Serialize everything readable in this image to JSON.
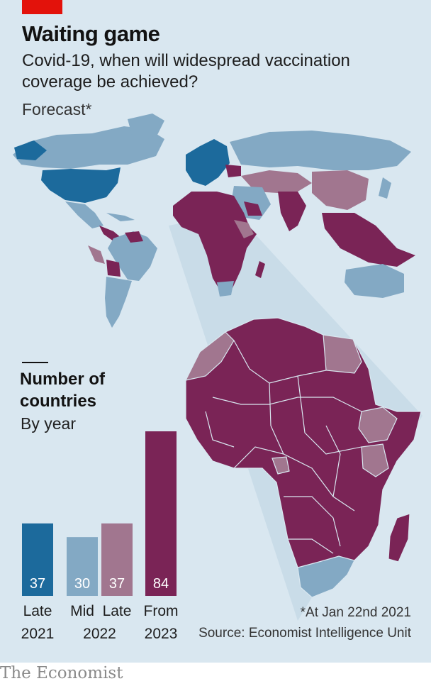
{
  "header": {
    "title": "Waiting game",
    "subtitle": "Covid-19, when will widespread vaccination coverage be achieved?",
    "note": "Forecast*"
  },
  "colors": {
    "late_2021": "#1c6a9c",
    "mid_2022": "#83a9c4",
    "late_2022": "#a1768f",
    "from_2023": "#7a2456",
    "background": "#d9e7f0",
    "brand_red": "#e3120b"
  },
  "chart_data": {
    "type": "bar",
    "title": "Number of countries",
    "subtitle": "By year",
    "categories": [
      "Late 2021",
      "Mid 2022",
      "Late 2022",
      "From 2023"
    ],
    "x_labels_top": [
      "Late",
      "Mid",
      "Late",
      "From"
    ],
    "x_labels_bottom": [
      "2021",
      "2022",
      "2023"
    ],
    "values": [
      37,
      30,
      37,
      84
    ],
    "ylim": [
      0,
      84
    ],
    "grid": false
  },
  "map": {
    "description_legend": "Countries coloured by forecast period of widespread vaccination coverage"
  },
  "footer": {
    "footnote": "*At Jan 22nd 2021",
    "source": "Source: Economist Intelligence Unit",
    "brand": "The Economist"
  }
}
